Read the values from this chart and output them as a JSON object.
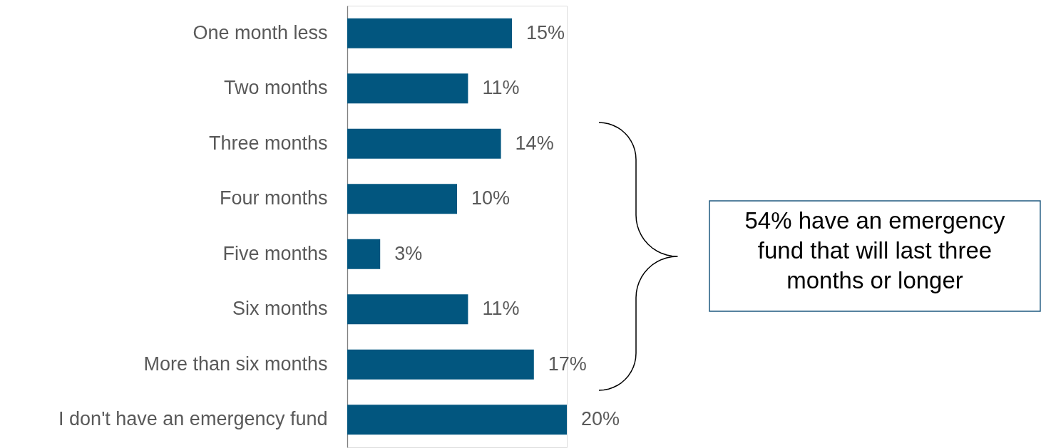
{
  "chart_data": {
    "type": "bar",
    "orientation": "horizontal",
    "categories": [
      "One month less",
      "Two months",
      "Three months",
      "Four months",
      "Five months",
      "Six months",
      "More than six months",
      "I don't have an emergency fund"
    ],
    "values": [
      15,
      11,
      14,
      10,
      3,
      11,
      17,
      20
    ],
    "value_labels": [
      "15%",
      "11%",
      "14%",
      "10%",
      "3%",
      "11%",
      "17%",
      "20%"
    ],
    "color": "#02567f",
    "annotations": [
      "54% have an emergency fund that will last three months or longer"
    ],
    "grid": false
  }
}
